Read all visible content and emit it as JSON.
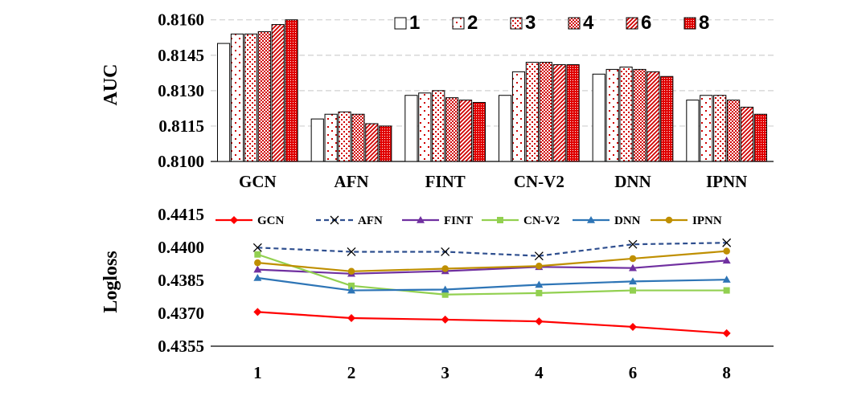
{
  "chart_data": [
    {
      "type": "bar",
      "ylabel": "AUC",
      "ylim": [
        0.81,
        0.8165
      ],
      "yticks": [
        "0.8100",
        "0.8115",
        "0.8130",
        "0.8145",
        "0.8160"
      ],
      "grid": true,
      "legend_position": "top-right",
      "categories": [
        "GCN",
        "AFN",
        "FINT",
        "CN-V2",
        "DNN",
        "IPNN"
      ],
      "series": [
        {
          "name": "1",
          "pattern": "plain",
          "values": [
            0.815,
            0.8118,
            0.8128,
            0.8128,
            0.8137,
            0.8126
          ]
        },
        {
          "name": "2",
          "pattern": "dots-sparse",
          "values": [
            0.8154,
            0.812,
            0.8129,
            0.8138,
            0.8139,
            0.8128
          ]
        },
        {
          "name": "3",
          "pattern": "dots-grid",
          "values": [
            0.8154,
            0.8121,
            0.813,
            0.8142,
            0.814,
            0.8128
          ]
        },
        {
          "name": "4",
          "pattern": "checker",
          "values": [
            0.8155,
            0.812,
            0.8127,
            0.8142,
            0.8139,
            0.8126
          ]
        },
        {
          "name": "6",
          "pattern": "diagonal",
          "values": [
            0.8158,
            0.8116,
            0.8126,
            0.8141,
            0.8138,
            0.8123
          ]
        },
        {
          "name": "8",
          "pattern": "dense",
          "values": [
            0.816,
            0.8115,
            0.8125,
            0.8141,
            0.8136,
            0.812
          ]
        }
      ]
    },
    {
      "type": "line",
      "ylabel": "Logloss",
      "ylim": [
        0.4355,
        0.4415
      ],
      "yticks": [
        "0.4355",
        "0.4370",
        "0.4385",
        "0.4400",
        "0.4415"
      ],
      "grid": false,
      "legend_position": "top",
      "x": [
        "1",
        "2",
        "3",
        "4",
        "6",
        "8"
      ],
      "series": [
        {
          "name": "GCN",
          "color": "#ff0000",
          "marker": "diamond",
          "dash": false,
          "values": [
            0.43706,
            0.43678,
            0.43671,
            0.43663,
            0.43638,
            0.43609
          ]
        },
        {
          "name": "AFN",
          "color": "#2f4f8f",
          "marker": "x",
          "dash": true,
          "values": [
            0.43999,
            0.4398,
            0.4398,
            0.43961,
            0.44014,
            0.44021
          ]
        },
        {
          "name": "FINT",
          "color": "#7030a0",
          "marker": "triangle",
          "dash": false,
          "values": [
            0.43899,
            0.4388,
            0.43892,
            0.43911,
            0.43906,
            0.4394
          ]
        },
        {
          "name": "CN-V2",
          "color": "#92d050",
          "marker": "square",
          "dash": false,
          "values": [
            0.43968,
            0.43825,
            0.43785,
            0.43792,
            0.43804,
            0.43804
          ]
        },
        {
          "name": "DNN",
          "color": "#2e75b6",
          "marker": "triangle",
          "dash": false,
          "values": [
            0.43861,
            0.43804,
            0.43808,
            0.4383,
            0.43845,
            0.43853
          ]
        },
        {
          "name": "IPNN",
          "color": "#bf8f00",
          "marker": "circle",
          "dash": false,
          "values": [
            0.4393,
            0.43891,
            0.43903,
            0.43915,
            0.43949,
            0.43983
          ]
        }
      ]
    }
  ]
}
